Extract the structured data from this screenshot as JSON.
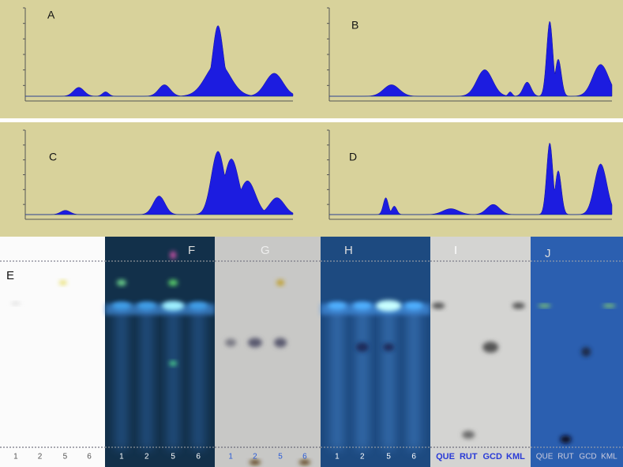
{
  "chromatograms": [
    {
      "label": "A"
    },
    {
      "label": "B"
    },
    {
      "label": "C"
    },
    {
      "label": "D"
    }
  ],
  "plates": [
    {
      "label": "E",
      "lanes": [
        "1",
        "2",
        "5",
        "6"
      ]
    },
    {
      "label": "F",
      "lanes": [
        "1",
        "2",
        "5",
        "6"
      ]
    },
    {
      "label": "G",
      "lanes": [
        "1",
        "2",
        "5",
        "6"
      ]
    },
    {
      "label": "H",
      "lanes": [
        "1",
        "2",
        "5",
        "6"
      ]
    },
    {
      "label": "I",
      "lanes": [
        "QUE",
        "RUT",
        "GCD",
        "KML"
      ]
    },
    {
      "label": "J",
      "lanes": [
        "QUE",
        "RUT",
        "GCD",
        "KML"
      ]
    }
  ]
}
